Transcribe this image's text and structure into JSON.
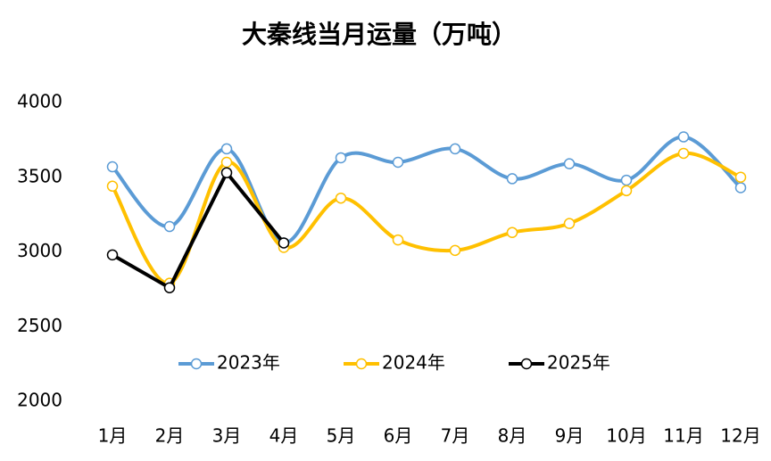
{
  "chart_data": {
    "type": "line",
    "title": "大秦线当月运量（万吨）",
    "categories": [
      "1月",
      "2月",
      "3月",
      "4月",
      "5月",
      "6月",
      "7月",
      "8月",
      "9月",
      "10月",
      "11月",
      "12月"
    ],
    "series": [
      {
        "name": "2023年",
        "color": "#5b9bd5",
        "smooth": true,
        "values": [
          3570,
          3170,
          3690,
          3060,
          3630,
          3600,
          3690,
          3490,
          3590,
          3480,
          3770,
          3430
        ]
      },
      {
        "name": "2024年",
        "color": "#ffc000",
        "smooth": true,
        "values": [
          3440,
          2790,
          3600,
          3030,
          3360,
          3080,
          3010,
          3130,
          3190,
          3410,
          3660,
          3500
        ]
      },
      {
        "name": "2025年",
        "color": "#000000",
        "smooth": false,
        "values": [
          2980,
          2760,
          3530,
          3060,
          null,
          null,
          null,
          null,
          null,
          null,
          null,
          null
        ]
      }
    ],
    "ylim": [
      2000,
      4000
    ],
    "yticks": [
      2000,
      2500,
      3000,
      3500,
      4000
    ],
    "grid": false
  }
}
